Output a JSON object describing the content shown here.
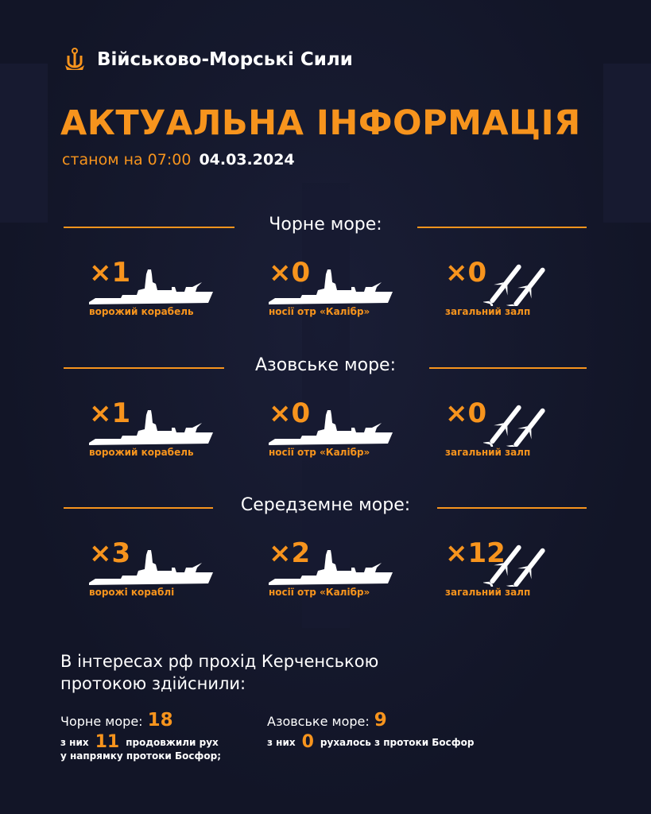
{
  "header": {
    "brand": "Військово-Морські Сили",
    "title": "АКТУАЛЬНА ІНФОРМАЦІЯ",
    "as_of_prefix": "станом на 07:00",
    "date": "04.03.2024"
  },
  "colors": {
    "accent": "#f7941d",
    "background": "#121527"
  },
  "sections": [
    {
      "title": "Чорне море:",
      "stats": [
        {
          "count": "×1",
          "label": "ворожий корабель",
          "icon": "ship-icon"
        },
        {
          "count": "×0",
          "label": "носії отр «Калібр»",
          "icon": "ship-icon"
        },
        {
          "count": "×0",
          "label": "загальний залп",
          "icon": "missiles-icon"
        }
      ]
    },
    {
      "title": "Азовське море:",
      "stats": [
        {
          "count": "×1",
          "label": "ворожий корабель",
          "icon": "ship-icon"
        },
        {
          "count": "×0",
          "label": "носії отр «Калібр»",
          "icon": "ship-icon"
        },
        {
          "count": "×0",
          "label": "загальний залп",
          "icon": "missiles-icon"
        }
      ]
    },
    {
      "title": "Середземне море:",
      "stats": [
        {
          "count": "×3",
          "label": "ворожі кораблі",
          "icon": "ship-icon"
        },
        {
          "count": "×2",
          "label": "носії отр «Калібр»",
          "icon": "ship-icon"
        },
        {
          "count": "×12",
          "label": "загальний залп",
          "icon": "missiles-icon"
        }
      ]
    }
  ],
  "kerch": {
    "heading": "В інтересах рф прохід Керченською протокою здійснили:",
    "black": {
      "label": "Чорне море:",
      "value": "18",
      "of_prefix": "з них",
      "of_value": "11",
      "of_suffix_1": "продовжили рух",
      "of_suffix_2": "у напрямку протоки Босфор;"
    },
    "azov": {
      "label": "Азовське море:",
      "value": "9",
      "of_prefix": "з них",
      "of_value": "0",
      "of_suffix": "рухалось з протоки Босфор"
    }
  }
}
